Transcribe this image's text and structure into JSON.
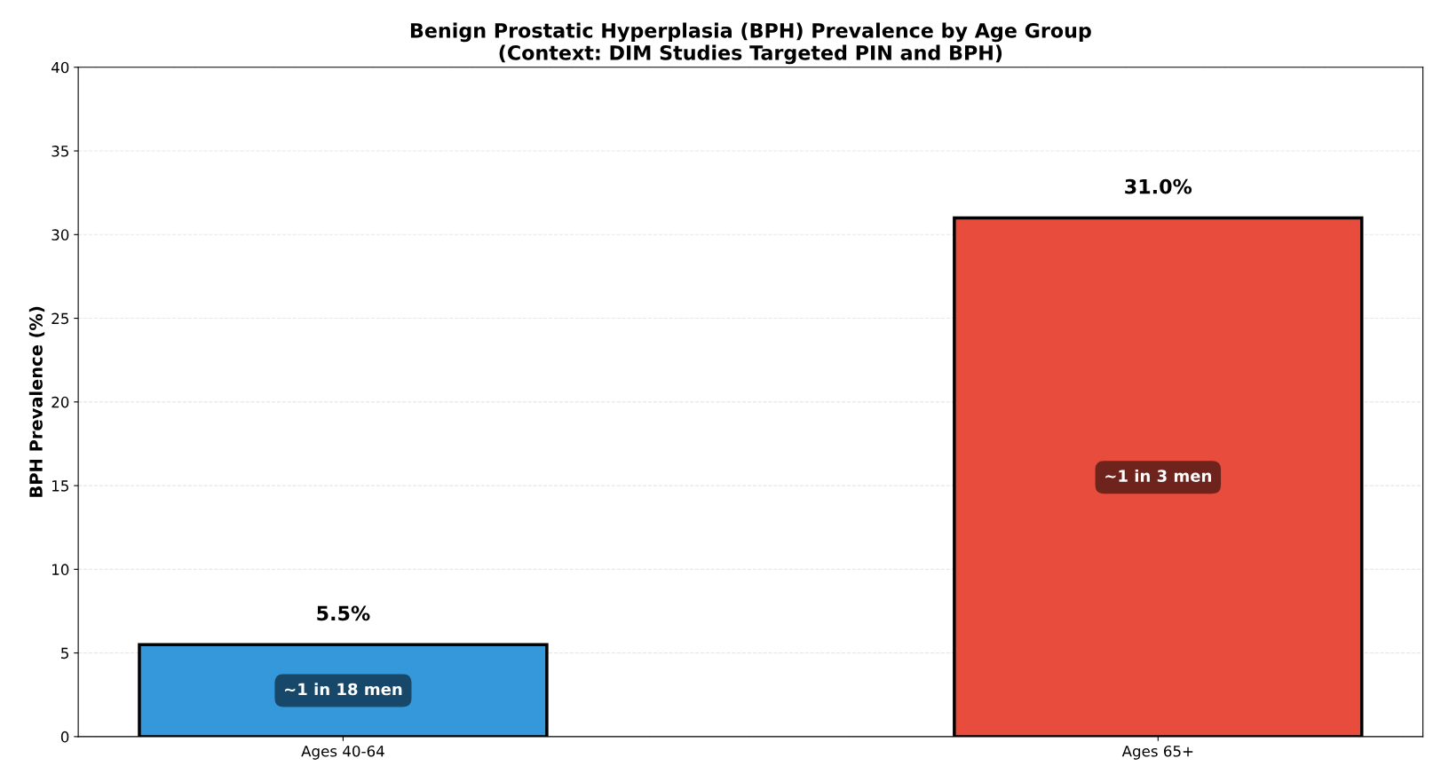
{
  "chart_data": {
    "type": "bar",
    "title": "Benign Prostatic Hyperplasia (BPH) Prevalence by Age Group\n(Context: DIM Studies Targeted PIN and BPH)",
    "ylabel": "BPH Prevalence (%)",
    "categories": [
      "Ages 40-64",
      "Ages 65+"
    ],
    "values": [
      5.5,
      31.0
    ],
    "colors": [
      "#3498db",
      "#e74c3c"
    ],
    "value_labels": [
      "5.5%",
      "31.0%"
    ],
    "annotations": [
      "~1 in 18 men",
      "~1 in 3 men"
    ],
    "ylim": [
      0,
      40
    ],
    "yticks": [
      0,
      5,
      10,
      15,
      20,
      25,
      30,
      35,
      40
    ],
    "grid": "y"
  }
}
